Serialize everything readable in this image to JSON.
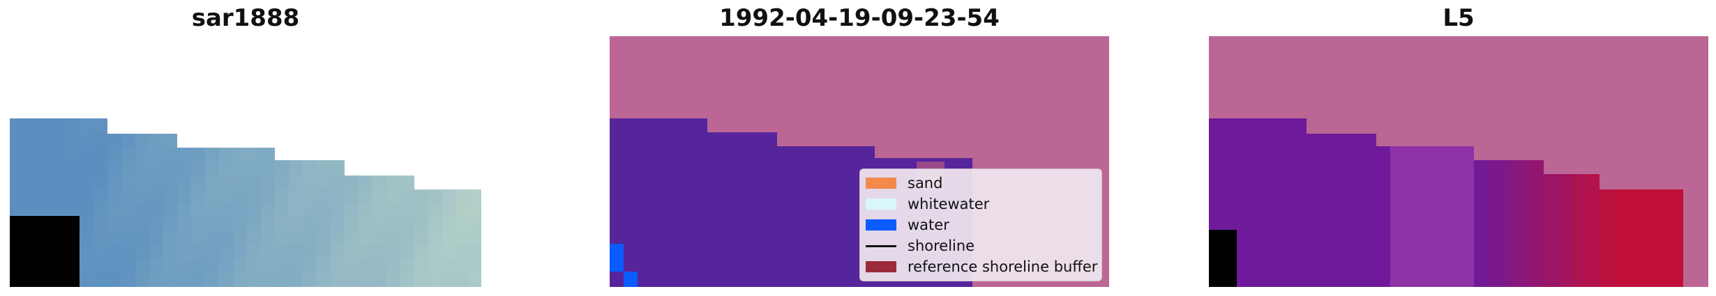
{
  "panels": [
    {
      "title": "sar1888"
    },
    {
      "title": "1992-04-19-09-23-54"
    },
    {
      "title": "L5"
    }
  ],
  "legend": {
    "items": [
      {
        "label": "sand",
        "kind": "patch",
        "color": "#f4894a"
      },
      {
        "label": "whitewater",
        "kind": "patch",
        "color": "#d8f7fb"
      },
      {
        "label": "water",
        "kind": "patch",
        "color": "#0a5cff"
      },
      {
        "label": "shoreline",
        "kind": "line",
        "color": "#111111"
      },
      {
        "label": "reference shoreline buffer",
        "kind": "patch",
        "color": "#9b2b3b"
      }
    ]
  },
  "colors": {
    "background_overlay": "#bc6695",
    "water_class_overlay": "#56249b",
    "sar_blue": "#5b8fbf",
    "sar_light": "#b6d2c8",
    "l5_purple": "#6e1a9a",
    "l5_red": "#c0103a"
  }
}
